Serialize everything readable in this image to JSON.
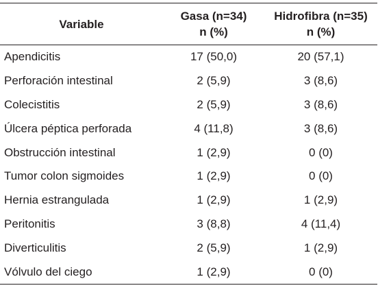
{
  "header": {
    "variable": "Variable",
    "gasa_line1": "Gasa (n=34)",
    "gasa_line2": "n (%)",
    "hidro_line1": "Hidrofibra (n=35)",
    "hidro_line2": "n (%)"
  },
  "rows": [
    {
      "variable": "Apendicitis",
      "gasa": "17 (50,0)",
      "hidro": "20 (57,1)"
    },
    {
      "variable": "Perforación intestinal",
      "gasa": "2 (5,9)",
      "hidro": "3 (8,6)"
    },
    {
      "variable": "Colecistitis",
      "gasa": "2 (5,9)",
      "hidro": "3 (8,6)"
    },
    {
      "variable": "Úlcera péptica perforada",
      "gasa": "4 (11,8)",
      "hidro": "3 (8,6)"
    },
    {
      "variable": "Obstrucción intestinal",
      "gasa": "1 (2,9)",
      "hidro": "0 (0)"
    },
    {
      "variable": "Tumor colon sigmoides",
      "gasa": "1 (2,9)",
      "hidro": "0 (0)"
    },
    {
      "variable": "Hernia estrangulada",
      "gasa": "1 (2,9)",
      "hidro": "1 (2,9)"
    },
    {
      "variable": "Peritonitis",
      "gasa": "3 (8,8)",
      "hidro": "4 (11,4)"
    },
    {
      "variable": "Diverticulitis",
      "gasa": "2 (5,9)",
      "hidro": "1 (2,9)"
    },
    {
      "variable": "Vólvulo del ciego",
      "gasa": "1 (2,9)",
      "hidro": "0 (0)"
    }
  ]
}
